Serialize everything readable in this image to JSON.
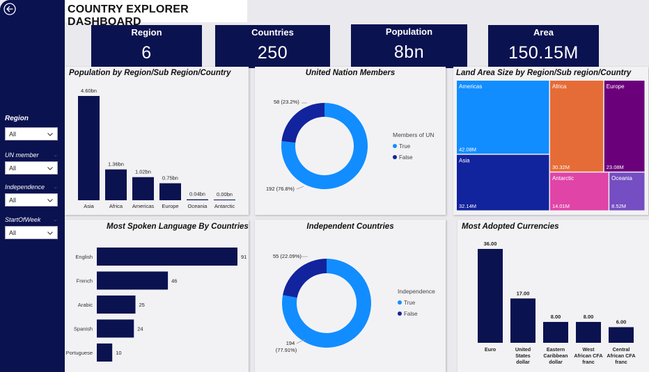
{
  "header": {
    "title": "COUNTRY EXPLORER DASHBOARD"
  },
  "kpis": [
    {
      "label": "Region",
      "value": "6"
    },
    {
      "label": "Countries",
      "value": "250"
    },
    {
      "label": "Population",
      "value": "8bn"
    },
    {
      "label": "Area",
      "value": "150.15M"
    }
  ],
  "slicers": [
    {
      "label": "Region",
      "value": "All"
    },
    {
      "label": "UN member",
      "value": "All"
    },
    {
      "label": "Independence",
      "value": "All"
    },
    {
      "label": "StartOfWeek",
      "value": "All"
    }
  ],
  "icons": {
    "back": "back-arrow-icon",
    "dropdown": "chevron-down-icon"
  },
  "colors": {
    "navy": "#0b1250",
    "accent_blue": "#118dff"
  },
  "chart_data": [
    {
      "type": "bar",
      "title": "Population by Region/Sub Region/Country",
      "categories": [
        "Asia",
        "Africa",
        "Americas",
        "Europe",
        "Oceania",
        "Antarctic"
      ],
      "values": [
        4.6,
        1.36,
        1.02,
        0.75,
        0.04,
        0.0
      ],
      "data_labels": [
        "4.60bn",
        "1.36bn",
        "1.02bn",
        "0.75bn",
        "0.04bn",
        "0.00bn"
      ],
      "ylim": [
        0,
        4.6
      ]
    },
    {
      "type": "pie",
      "title": "United Nation Members",
      "legend_title": "Members of UN",
      "legend_position": "right",
      "slices": [
        {
          "name": "True",
          "value": 192,
          "label": "192 (76.8%)",
          "color": "#118dff"
        },
        {
          "name": "False",
          "value": 58,
          "label": "58 (23.2%)",
          "color": "#12239e"
        }
      ]
    },
    {
      "type": "treemap",
      "title": "Land Area Size by Region/Sub region/Country",
      "items": [
        {
          "name": "Americas",
          "value": 42.08,
          "label": "42.08M",
          "color": "#118dff"
        },
        {
          "name": "Asia",
          "value": 32.14,
          "label": "32.14M",
          "color": "#12239e"
        },
        {
          "name": "Africa",
          "value": 30.32,
          "label": "30.32M",
          "color": "#e66c37"
        },
        {
          "name": "Europe",
          "value": 23.08,
          "label": "23.08M",
          "color": "#6b007b"
        },
        {
          "name": "Antarctic",
          "value": 14.01,
          "label": "14.01M",
          "color": "#e044a7"
        },
        {
          "name": "Oceania",
          "value": 8.52,
          "label": "8.52M",
          "color": "#744ec2"
        }
      ]
    },
    {
      "type": "bar",
      "orientation": "horizontal",
      "title": "Most Spoken Language By Countries",
      "categories": [
        "English",
        "French",
        "Arabic",
        "Spanish",
        "Portuguese"
      ],
      "values": [
        91,
        46,
        25,
        24,
        10
      ],
      "data_labels": [
        "91",
        "46",
        "25",
        "24",
        "10"
      ]
    },
    {
      "type": "pie",
      "title": "Independent Countries",
      "legend_title": "Independence",
      "legend_position": "right",
      "slices": [
        {
          "name": "True",
          "value": 194,
          "label_lines": [
            "194",
            "(77.91%)"
          ],
          "color": "#118dff"
        },
        {
          "name": "False",
          "value": 55,
          "label_lines": [
            "55 (22.09%)"
          ],
          "color": "#12239e"
        }
      ]
    },
    {
      "type": "bar",
      "title": "Most Adopted Currencies",
      "categories": [
        [
          "Euro"
        ],
        [
          "United",
          "States",
          "dollar"
        ],
        [
          "Eastern",
          "Caribbean",
          "dollar"
        ],
        [
          "West",
          "African CFA",
          "franc"
        ],
        [
          "Central",
          "African CFA",
          "franc"
        ]
      ],
      "values": [
        36,
        17,
        8,
        8,
        6
      ],
      "data_labels": [
        "36.00",
        "17.00",
        "8.00",
        "8.00",
        "6.00"
      ],
      "ylim": [
        0,
        36
      ]
    }
  ]
}
